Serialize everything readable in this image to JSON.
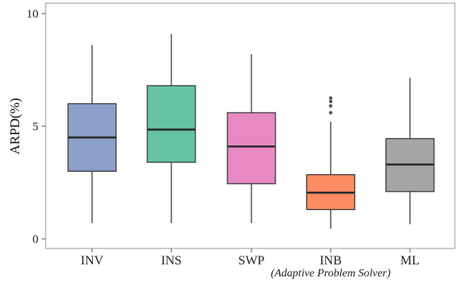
{
  "chart_data": {
    "type": "box",
    "title": "",
    "xlabel": "",
    "ylabel": "ARPD(%)",
    "ylim": [
      0,
      10
    ],
    "yticks": [
      0,
      5,
      10
    ],
    "grid": false,
    "annotation": "(Adaptive Problem Solver)",
    "categories": [
      "INV",
      "INS",
      "SWP",
      "INB",
      "ML"
    ],
    "boxes": [
      {
        "name": "INV",
        "min": 0.7,
        "q1": 3.0,
        "median": 4.5,
        "q3": 6.0,
        "max": 8.6,
        "outliers": [],
        "color": "#8da0cb"
      },
      {
        "name": "INS",
        "min": 0.7,
        "q1": 3.4,
        "median": 4.85,
        "q3": 6.8,
        "max": 9.1,
        "outliers": [],
        "color": "#66c2a5"
      },
      {
        "name": "SWP",
        "min": 0.7,
        "q1": 2.45,
        "median": 4.1,
        "q3": 5.6,
        "max": 8.2,
        "outliers": [],
        "color": "#e78ac3"
      },
      {
        "name": "INB",
        "min": 0.45,
        "q1": 1.3,
        "median": 2.05,
        "q3": 2.85,
        "max": 5.2,
        "outliers": [
          5.6,
          5.9,
          6.1,
          6.25
        ],
        "color": "#fc8d62"
      },
      {
        "name": "ML",
        "min": 0.65,
        "q1": 2.1,
        "median": 3.3,
        "q3": 4.45,
        "max": 7.15,
        "outliers": [],
        "color": "#a6a6a6"
      }
    ]
  }
}
